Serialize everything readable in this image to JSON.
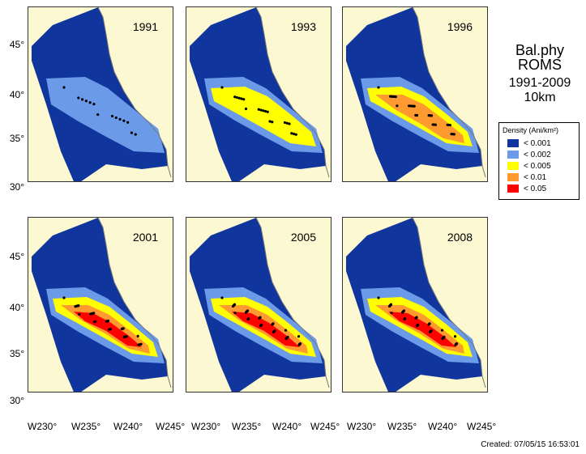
{
  "panels": [
    {
      "year": "1991",
      "level": 1
    },
    {
      "year": "1993",
      "level": 2
    },
    {
      "year": "1996",
      "level": 3
    },
    {
      "year": "2001",
      "level": 4
    },
    {
      "year": "2005",
      "level": 5
    },
    {
      "year": "2008",
      "level": 5
    }
  ],
  "y_ticks_top": [
    "45°",
    "40°",
    "35°",
    "30°"
  ],
  "y_ticks_bottom": [
    "45°",
    "40°",
    "35°",
    "30°"
  ],
  "x_ticks": [
    "W230°",
    "W235°",
    "W240°",
    "W245°"
  ],
  "title": {
    "line1": "Bal.phy",
    "line2": "ROMS",
    "line3": "1991-2009 10km"
  },
  "legend": {
    "title": "Density (Ani/km²)",
    "items": [
      {
        "label": "< 0.001",
        "color": "#10369e"
      },
      {
        "label": "< 0.002",
        "color": "#6b9be8"
      },
      {
        "label": "< 0.005",
        "color": "#ffff00"
      },
      {
        "label": "< 0.01",
        "color": "#ff9a30"
      },
      {
        "label": "< 0.05",
        "color": "#ff0000"
      }
    ]
  },
  "footer": "Created: 07/05/15  16:53:01"
}
